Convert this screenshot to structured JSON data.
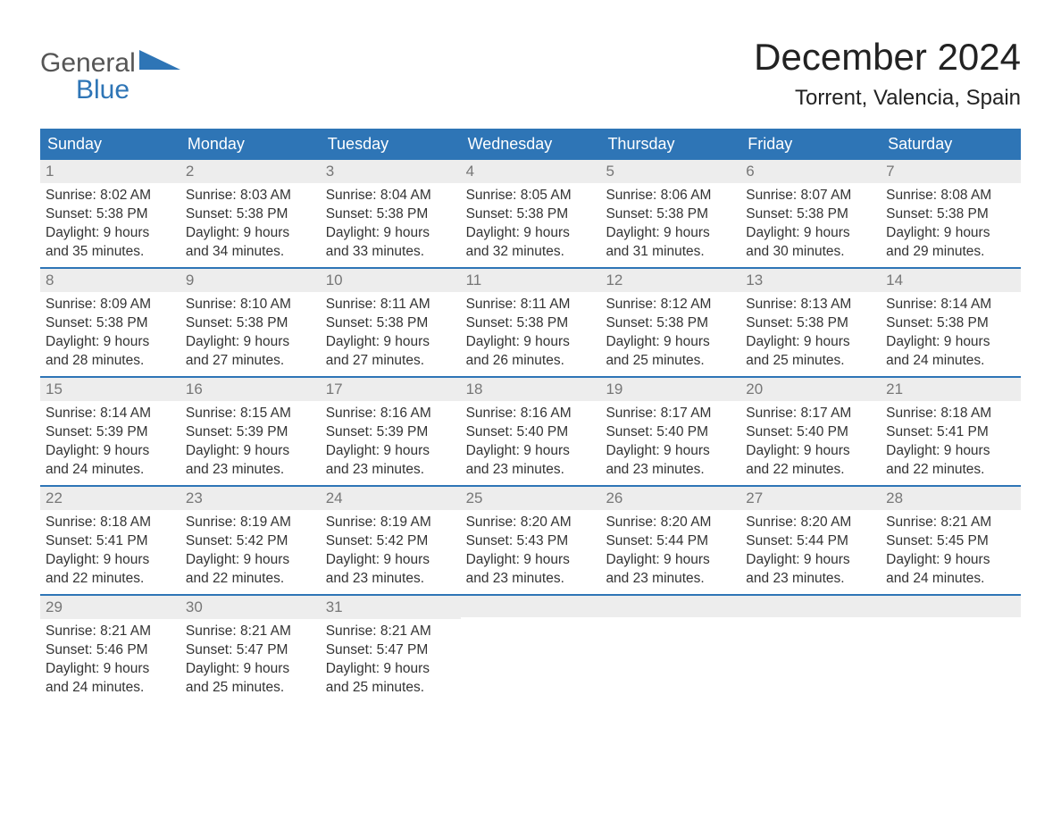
{
  "logo": {
    "word1": "General",
    "word2": "Blue"
  },
  "title": "December 2024",
  "location": "Torrent, Valencia, Spain",
  "colors": {
    "brand": "#2e75b6",
    "header_bg": "#2e75b6",
    "header_text": "#ffffff",
    "daynum_bg": "#ededed",
    "daynum_text": "#777777",
    "body_text": "#333333",
    "page_bg": "#ffffff"
  },
  "dayHeaders": [
    "Sunday",
    "Monday",
    "Tuesday",
    "Wednesday",
    "Thursday",
    "Friday",
    "Saturday"
  ],
  "weeks": [
    [
      {
        "n": "1",
        "sunrise": "8:02 AM",
        "sunset": "5:38 PM",
        "dl1": "Daylight: 9 hours",
        "dl2": "and 35 minutes."
      },
      {
        "n": "2",
        "sunrise": "8:03 AM",
        "sunset": "5:38 PM",
        "dl1": "Daylight: 9 hours",
        "dl2": "and 34 minutes."
      },
      {
        "n": "3",
        "sunrise": "8:04 AM",
        "sunset": "5:38 PM",
        "dl1": "Daylight: 9 hours",
        "dl2": "and 33 minutes."
      },
      {
        "n": "4",
        "sunrise": "8:05 AM",
        "sunset": "5:38 PM",
        "dl1": "Daylight: 9 hours",
        "dl2": "and 32 minutes."
      },
      {
        "n": "5",
        "sunrise": "8:06 AM",
        "sunset": "5:38 PM",
        "dl1": "Daylight: 9 hours",
        "dl2": "and 31 minutes."
      },
      {
        "n": "6",
        "sunrise": "8:07 AM",
        "sunset": "5:38 PM",
        "dl1": "Daylight: 9 hours",
        "dl2": "and 30 minutes."
      },
      {
        "n": "7",
        "sunrise": "8:08 AM",
        "sunset": "5:38 PM",
        "dl1": "Daylight: 9 hours",
        "dl2": "and 29 minutes."
      }
    ],
    [
      {
        "n": "8",
        "sunrise": "8:09 AM",
        "sunset": "5:38 PM",
        "dl1": "Daylight: 9 hours",
        "dl2": "and 28 minutes."
      },
      {
        "n": "9",
        "sunrise": "8:10 AM",
        "sunset": "5:38 PM",
        "dl1": "Daylight: 9 hours",
        "dl2": "and 27 minutes."
      },
      {
        "n": "10",
        "sunrise": "8:11 AM",
        "sunset": "5:38 PM",
        "dl1": "Daylight: 9 hours",
        "dl2": "and 27 minutes."
      },
      {
        "n": "11",
        "sunrise": "8:11 AM",
        "sunset": "5:38 PM",
        "dl1": "Daylight: 9 hours",
        "dl2": "and 26 minutes."
      },
      {
        "n": "12",
        "sunrise": "8:12 AM",
        "sunset": "5:38 PM",
        "dl1": "Daylight: 9 hours",
        "dl2": "and 25 minutes."
      },
      {
        "n": "13",
        "sunrise": "8:13 AM",
        "sunset": "5:38 PM",
        "dl1": "Daylight: 9 hours",
        "dl2": "and 25 minutes."
      },
      {
        "n": "14",
        "sunrise": "8:14 AM",
        "sunset": "5:38 PM",
        "dl1": "Daylight: 9 hours",
        "dl2": "and 24 minutes."
      }
    ],
    [
      {
        "n": "15",
        "sunrise": "8:14 AM",
        "sunset": "5:39 PM",
        "dl1": "Daylight: 9 hours",
        "dl2": "and 24 minutes."
      },
      {
        "n": "16",
        "sunrise": "8:15 AM",
        "sunset": "5:39 PM",
        "dl1": "Daylight: 9 hours",
        "dl2": "and 23 minutes."
      },
      {
        "n": "17",
        "sunrise": "8:16 AM",
        "sunset": "5:39 PM",
        "dl1": "Daylight: 9 hours",
        "dl2": "and 23 minutes."
      },
      {
        "n": "18",
        "sunrise": "8:16 AM",
        "sunset": "5:40 PM",
        "dl1": "Daylight: 9 hours",
        "dl2": "and 23 minutes."
      },
      {
        "n": "19",
        "sunrise": "8:17 AM",
        "sunset": "5:40 PM",
        "dl1": "Daylight: 9 hours",
        "dl2": "and 23 minutes."
      },
      {
        "n": "20",
        "sunrise": "8:17 AM",
        "sunset": "5:40 PM",
        "dl1": "Daylight: 9 hours",
        "dl2": "and 22 minutes."
      },
      {
        "n": "21",
        "sunrise": "8:18 AM",
        "sunset": "5:41 PM",
        "dl1": "Daylight: 9 hours",
        "dl2": "and 22 minutes."
      }
    ],
    [
      {
        "n": "22",
        "sunrise": "8:18 AM",
        "sunset": "5:41 PM",
        "dl1": "Daylight: 9 hours",
        "dl2": "and 22 minutes."
      },
      {
        "n": "23",
        "sunrise": "8:19 AM",
        "sunset": "5:42 PM",
        "dl1": "Daylight: 9 hours",
        "dl2": "and 22 minutes."
      },
      {
        "n": "24",
        "sunrise": "8:19 AM",
        "sunset": "5:42 PM",
        "dl1": "Daylight: 9 hours",
        "dl2": "and 23 minutes."
      },
      {
        "n": "25",
        "sunrise": "8:20 AM",
        "sunset": "5:43 PM",
        "dl1": "Daylight: 9 hours",
        "dl2": "and 23 minutes."
      },
      {
        "n": "26",
        "sunrise": "8:20 AM",
        "sunset": "5:44 PM",
        "dl1": "Daylight: 9 hours",
        "dl2": "and 23 minutes."
      },
      {
        "n": "27",
        "sunrise": "8:20 AM",
        "sunset": "5:44 PM",
        "dl1": "Daylight: 9 hours",
        "dl2": "and 23 minutes."
      },
      {
        "n": "28",
        "sunrise": "8:21 AM",
        "sunset": "5:45 PM",
        "dl1": "Daylight: 9 hours",
        "dl2": "and 24 minutes."
      }
    ],
    [
      {
        "n": "29",
        "sunrise": "8:21 AM",
        "sunset": "5:46 PM",
        "dl1": "Daylight: 9 hours",
        "dl2": "and 24 minutes."
      },
      {
        "n": "30",
        "sunrise": "8:21 AM",
        "sunset": "5:47 PM",
        "dl1": "Daylight: 9 hours",
        "dl2": "and 25 minutes."
      },
      {
        "n": "31",
        "sunrise": "8:21 AM",
        "sunset": "5:47 PM",
        "dl1": "Daylight: 9 hours",
        "dl2": "and 25 minutes."
      },
      null,
      null,
      null,
      null
    ]
  ],
  "labels": {
    "sunrise": "Sunrise:",
    "sunset": "Sunset:"
  }
}
